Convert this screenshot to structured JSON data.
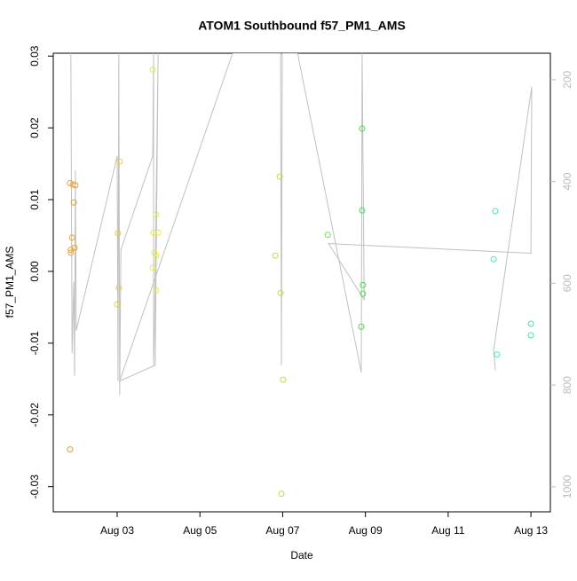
{
  "chart_data": {
    "type": "scatter",
    "title": "ATOM1 Southbound f57_PM1_AMS",
    "x_label": "Date",
    "y_label": "f57_PM1_AMS",
    "x": [
      1.86,
      1.93,
      1.99,
      1.95,
      1.91,
      1.88,
      1.88,
      1.97,
      1.86,
      3.06,
      3.02,
      3.04,
      3.0,
      3.86,
      3.94,
      3.88,
      3.99,
      3.9,
      3.94,
      3.86,
      3.94,
      6.93,
      6.82,
      6.95,
      7.01,
      6.97,
      8.09,
      8.92,
      8.92,
      8.94,
      8.94,
      8.9,
      12.14,
      12.1,
      12.18,
      13.0,
      13.0
    ],
    "values": [
      0.0123,
      0.0121,
      0.012,
      0.0096,
      0.0047,
      0.003,
      0.0026,
      0.0033,
      -0.0248,
      0.0153,
      0.0053,
      -0.0023,
      -0.0046,
      0.0281,
      0.0079,
      0.0054,
      0.0054,
      0.0026,
      0.0022,
      0.0005,
      -0.0026,
      0.0132,
      0.0022,
      -0.003,
      -0.0151,
      -0.031,
      0.0051,
      0.0199,
      0.0085,
      -0.0019,
      -0.0031,
      -0.0077,
      0.0084,
      0.0017,
      -0.0116,
      -0.0073,
      -0.0089
    ],
    "point_colors": [
      "#e8a030",
      "#e8a030",
      "#e8a030",
      "#e8a030",
      "#e8a030",
      "#e8a030",
      "#e8a030",
      "#e8a030",
      "#e8a030",
      "#e0d040",
      "#e0d040",
      "#e0d040",
      "#e0d040",
      "#e8e840",
      "#e8e840",
      "#e8e840",
      "#e8e840",
      "#e8e840",
      "#e8e840",
      "#e8e840",
      "#e8e840",
      "#b8e040",
      "#b8e040",
      "#b8e040",
      "#b8e040",
      "#b8e040",
      "#70e040",
      "#40e050",
      "#40e050",
      "#40e050",
      "#40e050",
      "#40e050",
      "#40e8a8",
      "#40e8a8",
      "#40e8a8",
      "#40e8a8",
      "#40e8a8"
    ],
    "xlim": [
      1.455,
      13.47
    ],
    "xticks": [
      {
        "value": 3,
        "label": "Aug 03"
      },
      {
        "value": 5,
        "label": "Aug 05"
      },
      {
        "value": 7,
        "label": "Aug 07"
      },
      {
        "value": 9,
        "label": "Aug 09"
      },
      {
        "value": 11,
        "label": "Aug 11"
      },
      {
        "value": 13,
        "label": "Aug 13"
      }
    ],
    "ylim": [
      -0.0335,
      0.0304
    ],
    "yticks": [
      -0.03,
      -0.02,
      -0.01,
      {
        "value": 0,
        "label": "0.00"
      },
      0.01,
      0.02,
      0.03
    ],
    "y2lim": [
      1049,
      148
    ],
    "y2ticks": [
      200,
      400,
      600,
      800,
      1000
    ],
    "overlay": {
      "type": "line",
      "axis": "y2",
      "color": "#c0c0c0",
      "x": [
        1.88,
        1.91,
        1.95,
        1.97,
        1.99,
        2.01,
        3.0,
        3.02,
        3.04,
        3.06,
        3.09,
        3.86,
        3.88,
        3.88,
        3.9,
        3.99,
        3.92,
        3.06,
        5.79,
        6.95,
        6.97,
        6.99,
        7.36,
        8.9,
        8.92,
        8.97,
        8.11,
        13.0,
        13.02,
        12.1,
        12.14
      ],
      "values": [
        148,
        737,
        597,
        782,
        378,
        693,
        350,
        792,
        148,
        820,
        534,
        350,
        148,
        761,
        700,
        148,
        761,
        792,
        148,
        148,
        761,
        148,
        148,
        775,
        148,
        632,
        522,
        541,
        214,
        731,
        771
      ]
    }
  }
}
